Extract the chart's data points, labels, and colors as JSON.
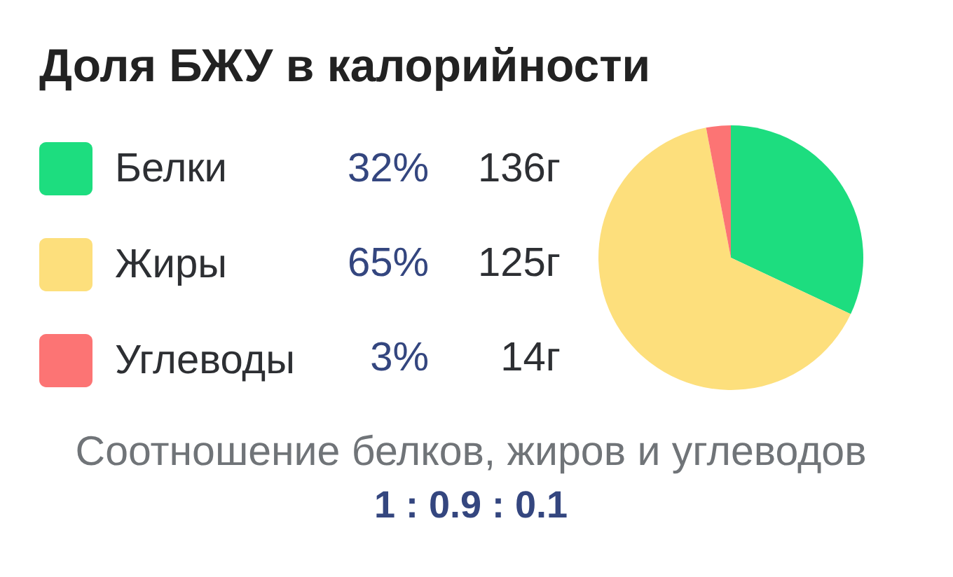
{
  "chart_data": {
    "type": "pie",
    "title": "Доля БЖУ в калорийности",
    "categories": [
      "Белки",
      "Жиры",
      "Углеводы"
    ],
    "values": [
      32,
      65,
      3
    ],
    "colors": [
      "#1ddd7f",
      "#fddf7c",
      "#fc7474"
    ],
    "value_labels": [
      "32%",
      "65%",
      "3%"
    ],
    "legend": "left",
    "annotations": [
      "136г",
      "125г",
      "14г",
      "Соотношение белков, жиров и углеводов",
      "1 : 0.9 : 0.1"
    ]
  }
}
